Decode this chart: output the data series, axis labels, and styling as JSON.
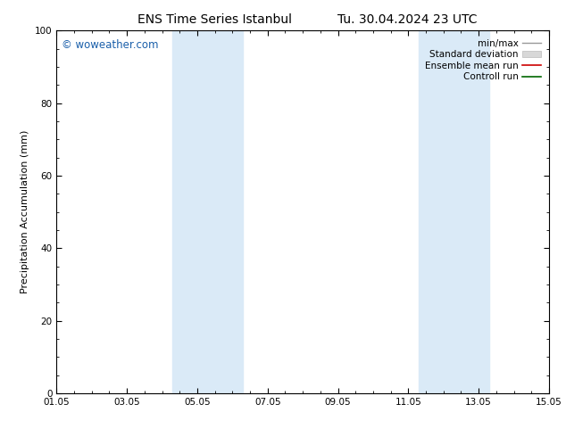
{
  "title_left": "ENS Time Series Istanbul",
  "title_right": "Tu. 30.04.2024 23 UTC",
  "ylabel": "Precipitation Accumulation (mm)",
  "ylim": [
    0,
    100
  ],
  "yticks": [
    0,
    20,
    40,
    60,
    80,
    100
  ],
  "xtick_labels": [
    "01.05",
    "03.05",
    "05.05",
    "07.05",
    "09.05",
    "11.05",
    "13.05",
    "15.05"
  ],
  "xtick_positions": [
    0,
    2,
    4,
    6,
    8,
    10,
    12,
    14
  ],
  "xlim": [
    0,
    14
  ],
  "shaded_bands": [
    {
      "x_start": 3.3,
      "x_end": 5.3
    },
    {
      "x_start": 10.3,
      "x_end": 12.3
    }
  ],
  "shaded_color": "#daeaf7",
  "watermark_text": "© woweather.com",
  "watermark_color": "#1a5faa",
  "legend_entries": [
    {
      "label": "min/max",
      "color": "#aaaaaa",
      "lw": 1.0
    },
    {
      "label": "Standard deviation",
      "color": "#cccccc",
      "lw": 5
    },
    {
      "label": "Ensemble mean run",
      "color": "#cc0000",
      "lw": 1.2
    },
    {
      "label": "Controll run",
      "color": "#006600",
      "lw": 1.2
    }
  ],
  "bg_color": "#ffffff",
  "spine_color": "#000000",
  "tick_color": "#000000",
  "font_size_title": 10,
  "font_size_axis": 8,
  "font_size_ticks": 7.5,
  "font_size_legend": 7.5,
  "font_size_watermark": 8.5
}
